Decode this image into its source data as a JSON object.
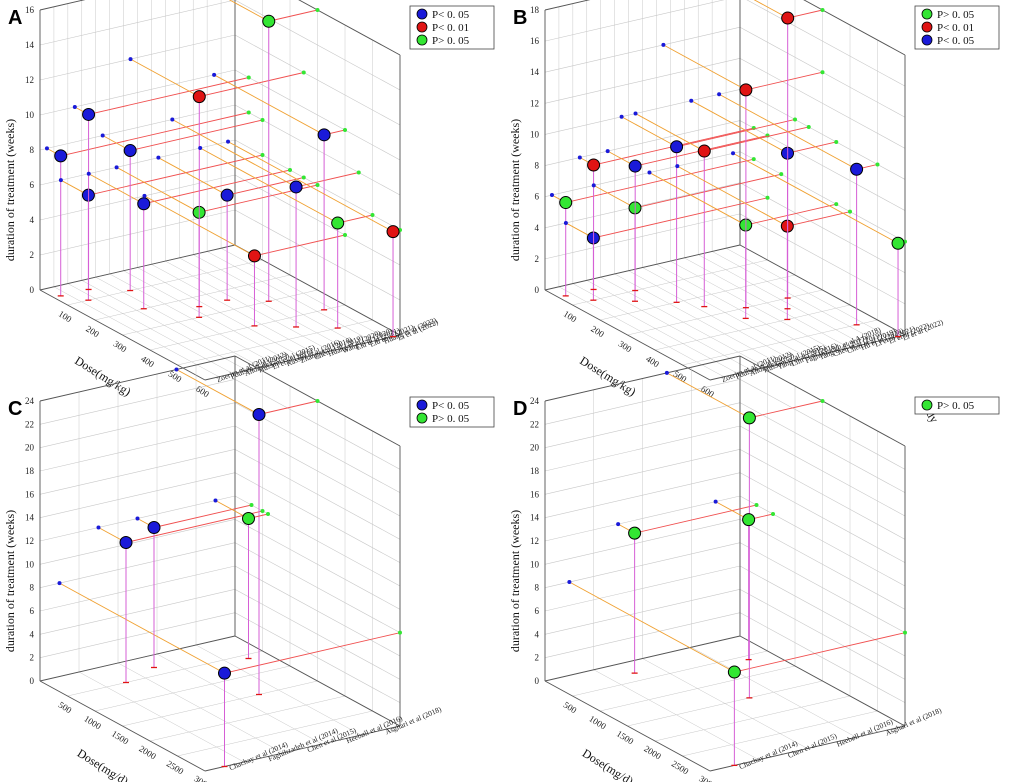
{
  "figure": {
    "panels": [
      {
        "letter": "A",
        "z_title": "duration of treatment (weeks)",
        "x_title": "Dose(mg/kg)",
        "y_title": "study"
      },
      {
        "letter": "B",
        "z_title": "duration of treatment (weeks)",
        "x_title": "Dose(mg/kg)",
        "y_title": "study"
      },
      {
        "letter": "C",
        "z_title": "duration of treatment (weeks)",
        "x_title": "Dose(mg/d)",
        "y_title": "study"
      },
      {
        "letter": "D",
        "z_title": "duration of treatment (weeks)",
        "x_title": "Dose(mg/d)",
        "y_title": "study"
      }
    ]
  },
  "colors": {
    "blue": "#1a1ad9",
    "red": "#e01414",
    "green": "#33e633",
    "stem": "#d65fd6",
    "line_red": "#f05050",
    "line_orange": "#f0a030",
    "grid": "#c8c8c8"
  },
  "chart_data": [
    {
      "type": "scatter",
      "panel": "A",
      "title": "",
      "zlabel": "duration of treatment (weeks)",
      "xlabel": "Dose(mg/kg)",
      "ylabel": "study",
      "zlim": [
        0,
        16
      ],
      "z_ticks": [
        "0",
        "2",
        "4",
        "6",
        "8",
        "10",
        "12",
        "14",
        "16"
      ],
      "x_ticks": [
        "100",
        "200",
        "300",
        "400",
        "500",
        "600"
      ],
      "xlim": [
        0,
        600
      ],
      "studies": [
        "Zoerim et al (2011)",
        "Poulsen et al (2012)",
        "Andrade (2013)",
        "Hussain et al (2015)",
        "Li et al (2016)",
        "Kassiri et al (2016)",
        "Zhang et al (2018)",
        "Chen et al (2019)",
        "Huang et al (2020)",
        "Wang et al (2020)",
        "Liu et al (2021)",
        "Liu et al (2021)",
        "Huang et al (2022)",
        "Li et al (2022)"
      ],
      "legend": [
        {
          "label": "P< 0. 05",
          "color": "blue"
        },
        {
          "label": "P< 0. 01",
          "color": "red"
        },
        {
          "label": "P> 0. 05",
          "color": "green"
        }
      ],
      "points": [
        {
          "study": 0,
          "dose": 50,
          "weeks": 8,
          "sig": "blue"
        },
        {
          "study": 1,
          "dose": 100,
          "weeks": 6,
          "sig": "blue"
        },
        {
          "study": 2,
          "dose": 50,
          "weeks": 10,
          "sig": "blue"
        },
        {
          "study": 3,
          "dose": 200,
          "weeks": 6,
          "sig": "blue"
        },
        {
          "study": 4,
          "dose": 100,
          "weeks": 8,
          "sig": "blue"
        },
        {
          "study": 5,
          "dose": 300,
          "weeks": 6,
          "sig": "green"
        },
        {
          "study": 6,
          "dose": 250,
          "weeks": 12,
          "sig": "red"
        },
        {
          "study": 7,
          "dose": 400,
          "weeks": 4,
          "sig": "red"
        },
        {
          "study": 8,
          "dose": 250,
          "weeks": 6,
          "sig": "blue"
        },
        {
          "study": 9,
          "dose": 450,
          "weeks": 8,
          "sig": "blue"
        },
        {
          "study": 10,
          "dose": 300,
          "weeks": 16,
          "sig": "green"
        },
        {
          "study": 11,
          "dose": 500,
          "weeks": 6,
          "sig": "green"
        },
        {
          "study": 12,
          "dose": 400,
          "weeks": 10,
          "sig": "blue"
        },
        {
          "study": 13,
          "dose": 600,
          "weeks": 6,
          "sig": "red"
        }
      ]
    },
    {
      "type": "scatter",
      "panel": "B",
      "title": "",
      "zlabel": "duration of treatment (weeks)",
      "xlabel": "Dose(mg/kg)",
      "ylabel": "study",
      "zlim": [
        0,
        18
      ],
      "z_ticks": [
        "0",
        "2",
        "4",
        "6",
        "8",
        "10",
        "12",
        "14",
        "16",
        "18"
      ],
      "x_ticks": [
        "100",
        "200",
        "300",
        "400",
        "500",
        "600"
      ],
      "xlim": [
        0,
        600
      ],
      "studies": [
        "Zoerim et al (2011)",
        "Poulsen et al (2012)",
        "Andrade (2013)",
        "Hussain et al (2015)",
        "Yang et al (2015)",
        "Lim et al (2016)",
        "Faghihzadeh et al A (2018)",
        "Tang et al (2017)",
        "Chen et al (2019)",
        "Chen et al (2019)",
        "Hu et al (2020)",
        "Li et al (2021)",
        "Li et al (2022)",
        "Li et al (2022)"
      ],
      "legend": [
        {
          "label": "P> 0. 05",
          "color": "green"
        },
        {
          "label": "P< 0. 01",
          "color": "red"
        },
        {
          "label": "P< 0. 05",
          "color": "blue"
        }
      ],
      "points": [
        {
          "study": 0,
          "dose": 50,
          "weeks": 6,
          "sig": "green"
        },
        {
          "study": 1,
          "dose": 100,
          "weeks": 4,
          "sig": "blue"
        },
        {
          "study": 2,
          "dose": 50,
          "weeks": 8,
          "sig": "red"
        },
        {
          "study": 3,
          "dose": 150,
          "weeks": 6,
          "sig": "green"
        },
        {
          "study": 4,
          "dose": 100,
          "weeks": 8,
          "sig": "blue"
        },
        {
          "study": 5,
          "dose": 200,
          "weeks": 10,
          "sig": "blue"
        },
        {
          "study": 6,
          "dose": 250,
          "weeks": 10,
          "sig": "red"
        },
        {
          "study": 7,
          "dose": 350,
          "weeks": 6,
          "sig": "green"
        },
        {
          "study": 8,
          "dose": 300,
          "weeks": 14,
          "sig": "red"
        },
        {
          "study": 9,
          "dose": 400,
          "weeks": 6,
          "sig": "red"
        },
        {
          "study": 10,
          "dose": 350,
          "weeks": 10,
          "sig": "blue"
        },
        {
          "study": 11,
          "dose": 300,
          "weeks": 18,
          "sig": "red"
        },
        {
          "study": 12,
          "dose": 500,
          "weeks": 10,
          "sig": "blue"
        },
        {
          "study": 13,
          "dose": 600,
          "weeks": 6,
          "sig": "green"
        }
      ]
    },
    {
      "type": "scatter",
      "panel": "C",
      "title": "",
      "zlabel": "duration of treatment (weeks)",
      "xlabel": "Dose(mg/d)",
      "ylabel": "study",
      "zlim": [
        0,
        24
      ],
      "z_ticks": [
        "0",
        "2",
        "4",
        "6",
        "8",
        "10",
        "12",
        "14",
        "16",
        "18",
        "20",
        "22",
        "24"
      ],
      "x_ticks": [
        "500",
        "1000",
        "1500",
        "2000",
        "2500",
        "3000"
      ],
      "xlim": [
        0,
        3000
      ],
      "studies": [
        "Chachay et al (2014)",
        "Faghihzadeh et al (2014)",
        "Chen et al (2015)",
        "Heebøll et al (2016)",
        "Asghari et al (2018)"
      ],
      "legend": [
        {
          "label": "P< 0. 05",
          "color": "blue"
        },
        {
          "label": "P> 0. 05",
          "color": "green"
        }
      ],
      "points": [
        {
          "study": 0,
          "dose": 3000,
          "weeks": 8,
          "sig": "blue"
        },
        {
          "study": 1,
          "dose": 500,
          "weeks": 12,
          "sig": "blue"
        },
        {
          "study": 2,
          "dose": 300,
          "weeks": 12,
          "sig": "blue"
        },
        {
          "study": 3,
          "dose": 1500,
          "weeks": 24,
          "sig": "blue"
        },
        {
          "study": 4,
          "dose": 600,
          "weeks": 12,
          "sig": "green"
        }
      ]
    },
    {
      "type": "scatter",
      "panel": "D",
      "title": "",
      "zlabel": "duration of treatment (weeks)",
      "xlabel": "Dose(mg/d)",
      "ylabel": "study",
      "zlim": [
        0,
        24
      ],
      "z_ticks": [
        "0",
        "2",
        "4",
        "6",
        "8",
        "10",
        "12",
        "14",
        "16",
        "18",
        "20",
        "22",
        "24"
      ],
      "x_ticks": [
        "500",
        "1000",
        "1500",
        "2000",
        "2500",
        "3000"
      ],
      "xlim": [
        0,
        3000
      ],
      "studies": [
        "Chachay et al (2014)",
        "Chen et al (2015)",
        "Heebøll et al (2016)",
        "Asghari et al (2018)"
      ],
      "legend": [
        {
          "label": "P> 0. 05",
          "color": "green"
        }
      ],
      "points": [
        {
          "study": 0,
          "dose": 3000,
          "weeks": 8,
          "sig": "green"
        },
        {
          "study": 1,
          "dose": 300,
          "weeks": 12,
          "sig": "green"
        },
        {
          "study": 2,
          "dose": 1500,
          "weeks": 24,
          "sig": "green"
        },
        {
          "study": 3,
          "dose": 600,
          "weeks": 12,
          "sig": "green"
        }
      ]
    }
  ]
}
